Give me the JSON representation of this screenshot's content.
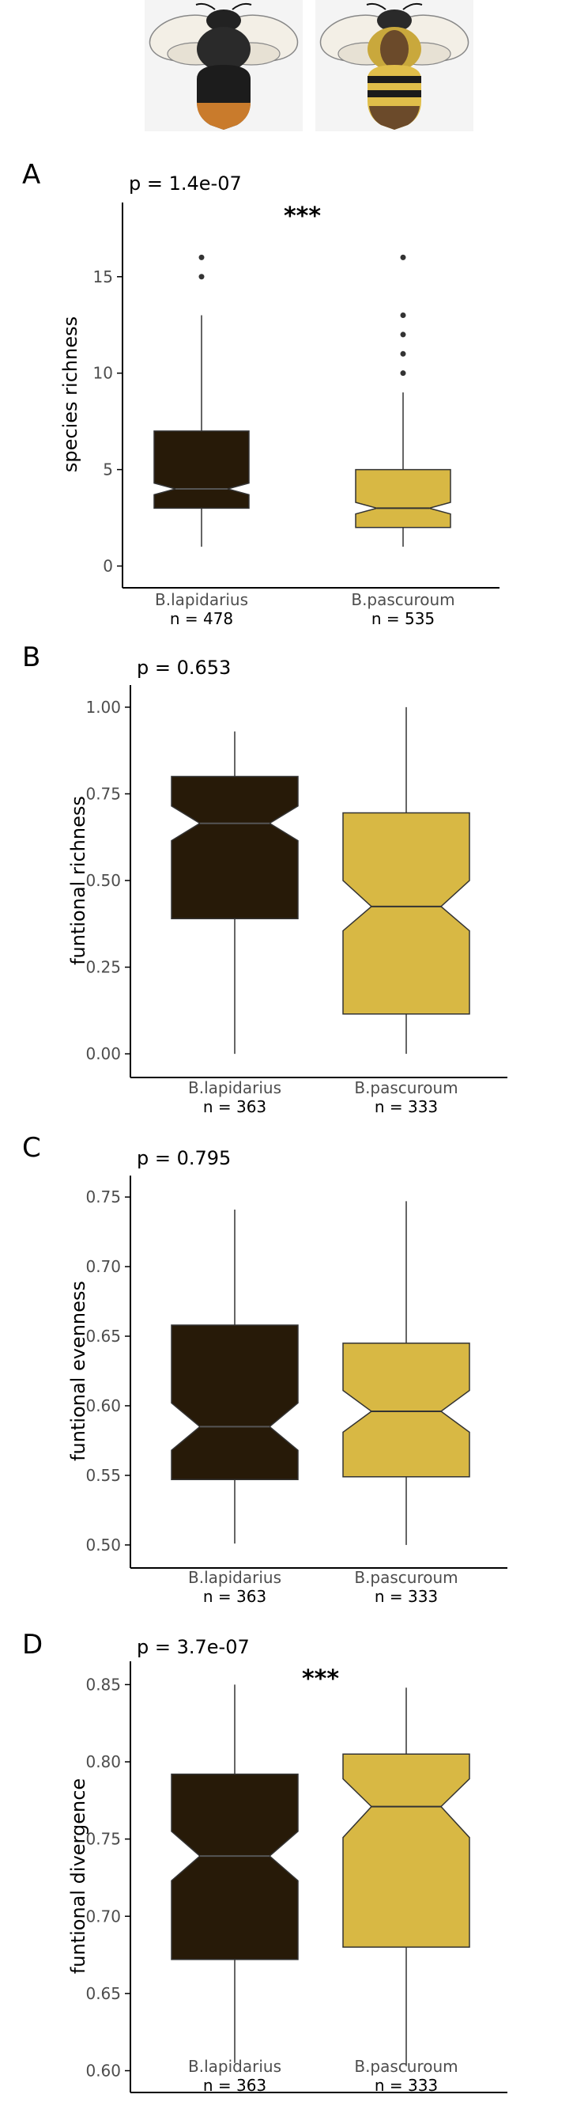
{
  "colors": {
    "lapidarius": "#271a08",
    "pascuroum": "#d8b844",
    "median_lapidarius": "#555555",
    "median_pascuroum": "#333333",
    "axis": "#000000",
    "tick_text": "#4d4d4d"
  },
  "illustrations": [
    {
      "name": "bee-lapidarius-icon",
      "species": "B.lapidarius"
    },
    {
      "name": "bee-pascuroum-icon",
      "species": "B.pascuroum"
    }
  ],
  "chart_data": [
    {
      "type": "box",
      "panel_label": "A",
      "pvalue": "p = 1.4e-07",
      "significance": "***",
      "ylabel": "species richness",
      "ylim": [
        -0.8,
        18.6
      ],
      "yticks": [
        0,
        5,
        10,
        15
      ],
      "ytick_labels": [
        "0",
        "5",
        "10",
        "15"
      ],
      "categories": [
        "B.lapidarius",
        "B.pascuroum"
      ],
      "n_labels": [
        "n = 478",
        "n = 535"
      ],
      "boxes": [
        {
          "min": 1,
          "q1": 3,
          "median": 4,
          "q3": 7,
          "max": 13,
          "notch": [
            3.7,
            4.3
          ],
          "outliers": [
            15,
            16
          ]
        },
        {
          "min": 1,
          "q1": 2,
          "median": 3,
          "q3": 5,
          "max": 9,
          "notch": [
            2.7,
            3.3
          ],
          "outliers": [
            10,
            11,
            12,
            13,
            16
          ]
        }
      ]
    },
    {
      "type": "box",
      "panel_label": "B",
      "pvalue": "p = 0.653",
      "significance": "",
      "ylabel": "funtional richness",
      "ylim": [
        -0.05,
        1.05
      ],
      "yticks": [
        0,
        0.25,
        0.5,
        0.75,
        1.0
      ],
      "ytick_labels": [
        "0.00",
        "0.25",
        "0.50",
        "0.75",
        "1.00"
      ],
      "categories": [
        "B.lapidarius",
        "B.pascuroum"
      ],
      "n_labels": [
        "n = 363",
        "n = 333"
      ],
      "boxes": [
        {
          "min": 0.0,
          "q1": 0.39,
          "median": 0.665,
          "q3": 0.8,
          "max": 0.93,
          "notch": [
            0.615,
            0.715
          ],
          "outliers": []
        },
        {
          "min": 0.0,
          "q1": 0.115,
          "median": 0.425,
          "q3": 0.695,
          "max": 1.0,
          "notch": [
            0.355,
            0.5
          ],
          "outliers": []
        }
      ]
    },
    {
      "type": "box",
      "panel_label": "C",
      "pvalue": "p = 0.795",
      "significance": "",
      "ylabel": "funtional evenness",
      "ylim": [
        0.488,
        0.762
      ],
      "yticks": [
        0.5,
        0.55,
        0.6,
        0.65,
        0.7,
        0.75
      ],
      "ytick_labels": [
        "0.50",
        "0.55",
        "0.60",
        "0.65",
        "0.70",
        "0.75"
      ],
      "categories": [
        "B.lapidarius",
        "B.pascuroum"
      ],
      "n_labels": [
        "n = 363",
        "n = 333"
      ],
      "boxes": [
        {
          "min": 0.501,
          "q1": 0.547,
          "median": 0.585,
          "q3": 0.658,
          "max": 0.741,
          "notch": [
            0.568,
            0.602
          ],
          "outliers": []
        },
        {
          "min": 0.5,
          "q1": 0.549,
          "median": 0.596,
          "q3": 0.645,
          "max": 0.747,
          "notch": [
            0.581,
            0.611
          ],
          "outliers": []
        }
      ]
    },
    {
      "type": "box",
      "panel_label": "D",
      "pvalue": "p = 3.7e-07",
      "significance": "***",
      "ylabel": "funtional divergence",
      "ylim": [
        0.59,
        0.862
      ],
      "yticks": [
        0.6,
        0.65,
        0.7,
        0.75,
        0.8,
        0.85
      ],
      "ytick_labels": [
        "0.60",
        "0.65",
        "0.70",
        "0.75",
        "0.80",
        "0.85"
      ],
      "categories": [
        "B.lapidarius",
        "B.pascuroum"
      ],
      "n_labels": [
        "n = 363",
        "n = 333"
      ],
      "boxes": [
        {
          "min": 0.605,
          "q1": 0.672,
          "median": 0.739,
          "q3": 0.792,
          "max": 0.85,
          "notch": [
            0.723,
            0.755
          ],
          "outliers": []
        },
        {
          "min": 0.603,
          "q1": 0.68,
          "median": 0.771,
          "q3": 0.805,
          "max": 0.848,
          "notch": [
            0.751,
            0.789
          ],
          "outliers": []
        }
      ]
    }
  ]
}
